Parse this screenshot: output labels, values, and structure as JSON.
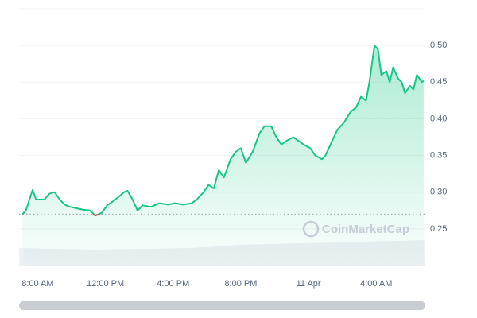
{
  "chart_data": {
    "type": "line",
    "watermark": "CoinMarketCap",
    "x": [
      -0.9,
      -0.7,
      -0.3,
      -0.1,
      0.4,
      0.7,
      1.0,
      1.3,
      1.6,
      1.9,
      2.3,
      2.7,
      3.1,
      3.4,
      3.8,
      4.1,
      4.6,
      5.1,
      5.3,
      5.6,
      5.9,
      6.2,
      6.7,
      7.2,
      7.7,
      8.1,
      8.6,
      9.1,
      9.4,
      9.8,
      10.1,
      10.4,
      10.7,
      11.0,
      11.4,
      11.7,
      12.0,
      12.3,
      12.7,
      13.1,
      13.4,
      13.8,
      14.1,
      14.4,
      14.7,
      15.1,
      15.4,
      15.7,
      16.1,
      16.4,
      16.8,
      17.0,
      17.4,
      17.7,
      18.1,
      18.5,
      18.8,
      19.1,
      19.4,
      19.6,
      19.9,
      20.1,
      20.3,
      20.6,
      20.8,
      21.0,
      21.3,
      21.5,
      21.7,
      22.0,
      22.2,
      22.4,
      22.7,
      22.8
    ],
    "series": [
      {
        "color": "#16c784",
        "below_color": "#ea3943",
        "values": [
          0.27,
          0.275,
          0.303,
          0.29,
          0.29,
          0.298,
          0.3,
          0.29,
          0.283,
          0.28,
          0.278,
          0.276,
          0.275,
          0.268,
          0.272,
          0.282,
          0.29,
          0.3,
          0.302,
          0.29,
          0.275,
          0.282,
          0.28,
          0.285,
          0.283,
          0.285,
          0.283,
          0.285,
          0.29,
          0.3,
          0.31,
          0.305,
          0.33,
          0.32,
          0.345,
          0.355,
          0.36,
          0.34,
          0.355,
          0.38,
          0.39,
          0.39,
          0.375,
          0.365,
          0.37,
          0.375,
          0.37,
          0.365,
          0.36,
          0.35,
          0.345,
          0.35,
          0.37,
          0.385,
          0.395,
          0.41,
          0.415,
          0.43,
          0.425,
          0.45,
          0.5,
          0.495,
          0.46,
          0.465,
          0.45,
          0.47,
          0.455,
          0.45,
          0.435,
          0.445,
          0.44,
          0.46,
          0.45,
          0.452
        ]
      }
    ],
    "baseline": 0.27,
    "xlim": [
      -1.1,
      22.9
    ],
    "xticks": [
      {
        "value": 0,
        "label": "8:00 AM"
      },
      {
        "value": 4,
        "label": "12:00 PM"
      },
      {
        "value": 8,
        "label": "4:00 PM"
      },
      {
        "value": 12,
        "label": "8:00 PM"
      },
      {
        "value": 16,
        "label": "11 Apr"
      },
      {
        "value": 20,
        "label": "4:00 AM"
      }
    ],
    "ylim": [
      0.2,
      0.55
    ],
    "yticks": [
      {
        "value": 0.25,
        "label": "0.25"
      },
      {
        "value": 0.3,
        "label": "0.30"
      },
      {
        "value": 0.35,
        "label": "0.35"
      },
      {
        "value": 0.4,
        "label": "0.40"
      },
      {
        "value": 0.45,
        "label": "0.45"
      },
      {
        "value": 0.5,
        "label": "0.50"
      }
    ],
    "grid": true
  }
}
